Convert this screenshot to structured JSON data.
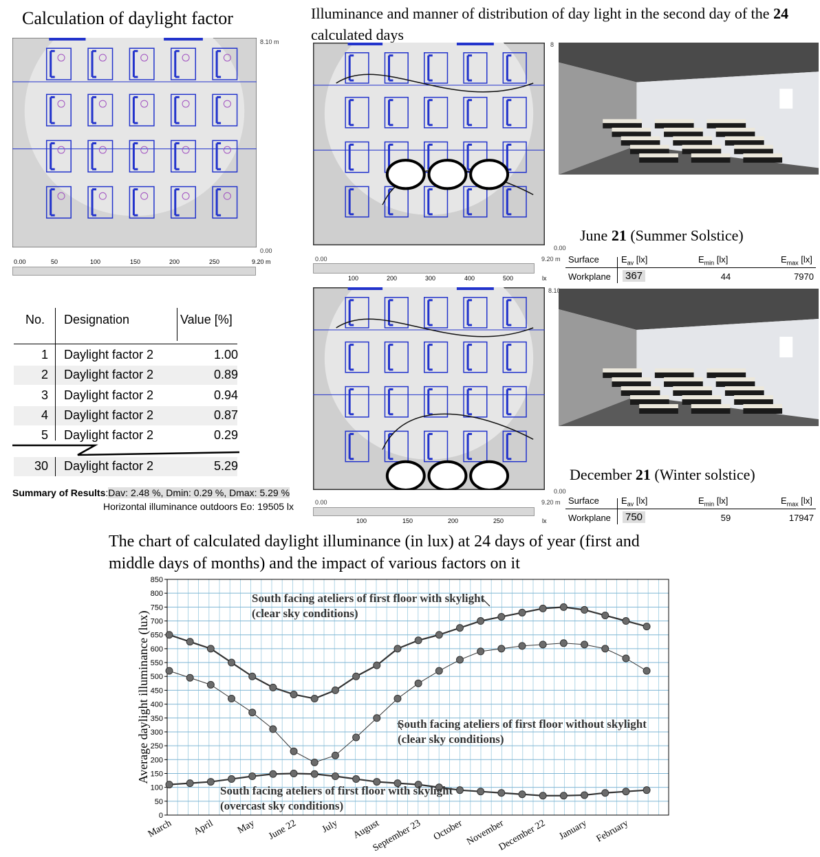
{
  "df_plan": {
    "title": "Calculation of daylight factor",
    "y_top": "8.10 m",
    "y_bottom": "0.00",
    "x_ticks": [
      "0.00",
      "50",
      "100",
      "150",
      "200",
      "250",
      "9.20 m"
    ]
  },
  "df_table": {
    "headers": [
      "No.",
      "Designation",
      "Value [%]"
    ],
    "rows": [
      [
        "1",
        "Daylight factor 2",
        "1.00"
      ],
      [
        "2",
        "Daylight factor 2",
        "0.89"
      ],
      [
        "3",
        "Daylight factor 2",
        "0.94"
      ],
      [
        "4",
        "Daylight factor 2",
        "0.87"
      ],
      [
        "5",
        "Daylight factor 2",
        "0.29"
      ],
      [
        "30",
        "Daylight factor 2",
        "5.29"
      ]
    ]
  },
  "summary": {
    "label": "Summary of Results",
    "text": "Dav: 2.48 %, Dmin: 0.29 %, Dmax: 5.29 %",
    "line2": "Horizontal illuminance outdoors Eo: 19505 lx"
  },
  "illuminance": {
    "title_parts": [
      "Illuminance and manner of distribution of day light in the second day of the ",
      "24",
      " calculated days"
    ],
    "plan1": {
      "corner": "8",
      "y_bottom": "0.00",
      "x_end": "9.20 m",
      "x_start": "0.00",
      "scale": [
        "100",
        "200",
        "300",
        "400",
        "500",
        "lx"
      ]
    },
    "plan2": {
      "corner": "8.10",
      "y_bottom": "0.00",
      "x_end": "9.20 m",
      "x_start": "0.00",
      "scale": [
        "100",
        "150",
        "200",
        "250",
        "lx"
      ]
    }
  },
  "june": {
    "title_parts": [
      "June ",
      "21",
      " (Summer Solstice)"
    ],
    "headers": [
      [
        "Surface"
      ],
      [
        "E",
        "av",
        " [lx]"
      ],
      [
        "E",
        "min",
        " [lx]"
      ],
      [
        "E",
        "max",
        " [lx]"
      ]
    ],
    "row": [
      "Workplane",
      "367",
      "44",
      "7970"
    ]
  },
  "december": {
    "title_parts": [
      "December ",
      "21",
      " (Winter solstice)"
    ],
    "headers": [
      [
        "Surface"
      ],
      [
        "E",
        "av",
        " [lx]"
      ],
      [
        "E",
        "min",
        " [lx]"
      ],
      [
        "E",
        "max",
        " [lx]"
      ]
    ],
    "row": [
      "Workplane",
      "750",
      "59",
      "17947"
    ]
  },
  "chart_data": {
    "type": "line",
    "title": "The chart of calculated daylight illuminance (in lux) at 24 days of year (first and middle days of months) and the impact of various factors on it",
    "y_label": "Average daylight illuminance (lux)",
    "categories": [
      "March",
      null,
      "April",
      null,
      "May",
      null,
      "June 22",
      null,
      "July",
      null,
      "August",
      null,
      "September 23",
      null,
      "October",
      null,
      "November",
      null,
      "December 22",
      null,
      "January",
      null,
      "February",
      null
    ],
    "ylim": [
      0,
      850
    ],
    "yticks": [
      0,
      50,
      100,
      150,
      200,
      250,
      300,
      350,
      400,
      450,
      500,
      550,
      600,
      650,
      700,
      750,
      800,
      850
    ],
    "grid": true,
    "series": [
      {
        "name": "South facing ateliers of first floor with skylight (clear sky conditions)",
        "color": "#333333",
        "values": [
          650,
          625,
          600,
          550,
          500,
          460,
          435,
          420,
          450,
          500,
          540,
          600,
          630,
          650,
          675,
          700,
          715,
          730,
          745,
          750,
          740,
          720,
          700,
          680
        ]
      },
      {
        "name": "South facing ateliers of first floor without skylight (clear sky conditions)",
        "color": "#333333",
        "values": [
          520,
          495,
          470,
          420,
          370,
          310,
          230,
          190,
          215,
          280,
          350,
          420,
          475,
          520,
          560,
          590,
          600,
          610,
          615,
          620,
          615,
          600,
          565,
          520
        ]
      },
      {
        "name": "South facing ateliers of first floor with skylight (overcast sky conditions)",
        "color": "#333333",
        "values": [
          110,
          115,
          120,
          130,
          140,
          148,
          150,
          148,
          140,
          130,
          120,
          115,
          110,
          100,
          90,
          85,
          80,
          75,
          70,
          70,
          72,
          80,
          85,
          90
        ]
      }
    ]
  }
}
